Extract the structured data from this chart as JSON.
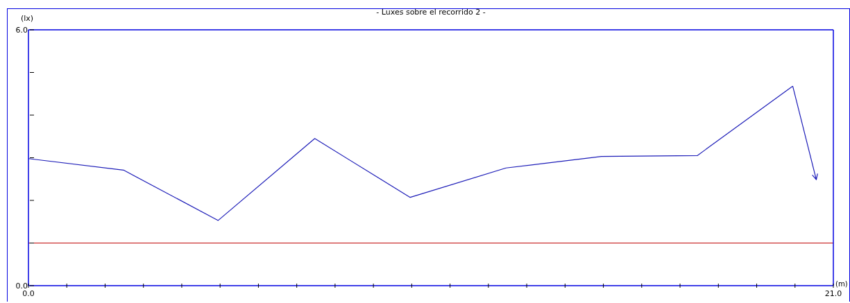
{
  "chart_data": {
    "type": "line",
    "title": "- Luxes sobre el recorrido 2 -",
    "xlabel": "(m)",
    "ylabel": "(lx)",
    "x": [
      0,
      2.48,
      4.95,
      7.47,
      9.96,
      12.46,
      14.95,
      17.45,
      19.94
    ],
    "series": [
      {
        "color": "#1c1cb8",
        "values": [
          2.98,
          2.71,
          1.53,
          3.45,
          2.07,
          2.76,
          3.03,
          3.05,
          4.68
        ]
      }
    ],
    "xlim": [
      0,
      21
    ],
    "xticks": [
      {
        "value": 0,
        "label": "0.0"
      },
      {
        "value": 1,
        "label": null
      },
      {
        "value": 2,
        "label": null
      },
      {
        "value": 3,
        "label": null
      },
      {
        "value": 4,
        "label": null
      },
      {
        "value": 5,
        "label": null
      },
      {
        "value": 6,
        "label": null
      },
      {
        "value": 7,
        "label": null
      },
      {
        "value": 8,
        "label": null
      },
      {
        "value": 9,
        "label": null
      },
      {
        "value": 10,
        "label": null
      },
      {
        "value": 11,
        "label": null
      },
      {
        "value": 12,
        "label": null
      },
      {
        "value": 13,
        "label": null
      },
      {
        "value": 14,
        "label": null
      },
      {
        "value": 15,
        "label": null
      },
      {
        "value": 16,
        "label": null
      },
      {
        "value": 17,
        "label": null
      },
      {
        "value": 18,
        "label": null
      },
      {
        "value": 19,
        "label": null
      },
      {
        "value": 20,
        "label": null
      },
      {
        "value": 21,
        "label": "21.0"
      }
    ],
    "ylim": [
      0,
      6
    ],
    "yticks": [
      {
        "value": 0,
        "label": "0.0"
      },
      {
        "value": 1,
        "label": null
      },
      {
        "value": 2,
        "label": null
      },
      {
        "value": 3,
        "label": null
      },
      {
        "value": 4,
        "label": null
      },
      {
        "value": 5,
        "label": null
      },
      {
        "value": 6,
        "label": "6.0"
      }
    ],
    "ref_lines": [
      {
        "axis": "y",
        "value": 1.0,
        "color": "#c00000"
      }
    ],
    "marker": "none",
    "line_style": "solid"
  }
}
